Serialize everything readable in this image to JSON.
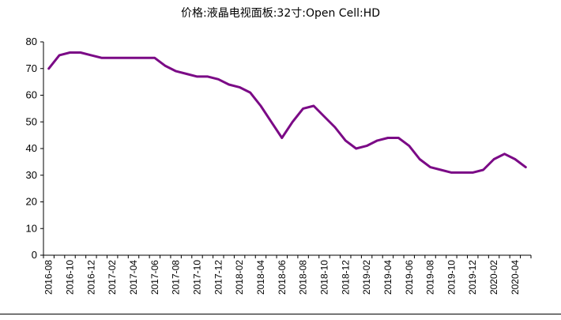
{
  "title": "价格:液晶电视面板:32寸:Open Cell:HD",
  "line_color": "#7b0a86",
  "chart_data": {
    "type": "line",
    "title": "价格:液晶电视面板:32寸:Open Cell:HD",
    "xlabel": "",
    "ylabel": "",
    "ylim": [
      0,
      80
    ],
    "yticks": [
      0,
      10,
      20,
      30,
      40,
      50,
      60,
      70,
      80
    ],
    "grid": false,
    "x": [
      "2016-08",
      "2016-09",
      "2016-10",
      "2016-11",
      "2016-12",
      "2017-01",
      "2017-02",
      "2017-03",
      "2017-04",
      "2017-05",
      "2017-06",
      "2017-07",
      "2017-08",
      "2017-09",
      "2017-10",
      "2017-11",
      "2017-12",
      "2018-01",
      "2018-02",
      "2018-03",
      "2018-04",
      "2018-05",
      "2018-06",
      "2018-07",
      "2018-08",
      "2018-09",
      "2018-10",
      "2018-11",
      "2018-12",
      "2019-01",
      "2019-02",
      "2019-03",
      "2019-04",
      "2019-05",
      "2019-06",
      "2019-07",
      "2019-08",
      "2019-09",
      "2019-10",
      "2019-11",
      "2019-12",
      "2020-01",
      "2020-02",
      "2020-03",
      "2020-04",
      "2020-05"
    ],
    "xtick_labels": [
      "2016-08",
      "2016-10",
      "2016-12",
      "2017-02",
      "2017-04",
      "2017-06",
      "2017-08",
      "2017-10",
      "2017-12",
      "2018-02",
      "2018-04",
      "2018-06",
      "2018-08",
      "2018-10",
      "2018-12",
      "2019-02",
      "2019-04",
      "2019-06",
      "2019-08",
      "2019-10",
      "2019-12",
      "2020-02",
      "2020-04"
    ],
    "series": [
      {
        "values": [
          70,
          75,
          76,
          76,
          75,
          74,
          74,
          74,
          74,
          74,
          74,
          71,
          69,
          68,
          67,
          67,
          66,
          64,
          63,
          61,
          56,
          50,
          44,
          50,
          55,
          56,
          52,
          48,
          43,
          40,
          41,
          43,
          44,
          44,
          41,
          36,
          33,
          32,
          31,
          31,
          31,
          32,
          36,
          38,
          36,
          33
        ]
      }
    ]
  }
}
